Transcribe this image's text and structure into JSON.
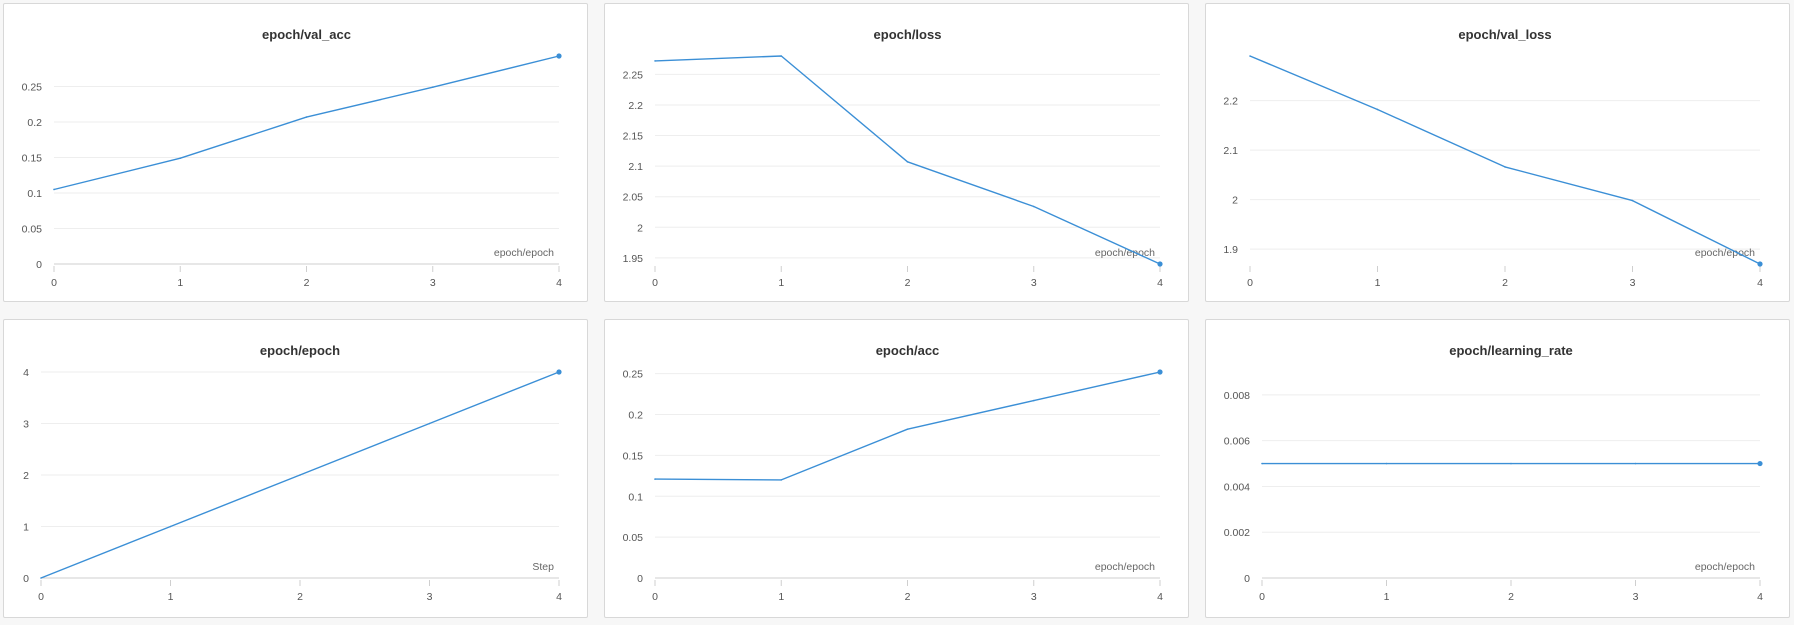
{
  "chart_data": [
    {
      "type": "line",
      "title": "epoch/val_acc",
      "xlabel": "epoch/epoch",
      "ylabel": "",
      "x": [
        0,
        1,
        2,
        3,
        4
      ],
      "values": [
        0.105,
        0.149,
        0.207,
        0.249,
        0.293
      ],
      "xlim": [
        0,
        4
      ],
      "ylim": [
        0,
        0.293
      ],
      "xticks": [
        "0",
        "1",
        "2",
        "3",
        "4"
      ],
      "yticks": [
        0,
        0.05,
        0.1,
        0.15,
        0.2,
        0.25
      ],
      "ytick_labels": [
        "0",
        "0.05",
        "0.1",
        "0.15",
        "0.2",
        "0.25"
      ],
      "baseline_axis": true,
      "grid": true,
      "color": "#3b8fd6"
    },
    {
      "type": "line",
      "title": "epoch/loss",
      "xlabel": "epoch/epoch",
      "ylabel": "",
      "x": [
        0,
        1,
        2,
        3,
        4
      ],
      "values": [
        2.272,
        2.28,
        2.107,
        2.034,
        1.94
      ],
      "xlim": [
        0,
        4
      ],
      "ylim": [
        1.94,
        2.28
      ],
      "xticks": [
        "0",
        "1",
        "2",
        "3",
        "4"
      ],
      "yticks": [
        1.95,
        2,
        2.05,
        2.1,
        2.15,
        2.2,
        2.25
      ],
      "ytick_labels": [
        "1.95",
        "2",
        "2.05",
        "2.1",
        "2.15",
        "2.2",
        "2.25"
      ],
      "baseline_axis": false,
      "grid": true,
      "color": "#3b8fd6"
    },
    {
      "type": "line",
      "title": "epoch/val_loss",
      "xlabel": "epoch/epoch",
      "ylabel": "",
      "x": [
        0,
        1,
        2,
        3,
        4
      ],
      "values": [
        2.29,
        2.182,
        2.066,
        1.998,
        1.87
      ],
      "xlim": [
        0,
        4
      ],
      "ylim": [
        1.87,
        2.29
      ],
      "xticks": [
        "0",
        "1",
        "2",
        "3",
        "4"
      ],
      "yticks": [
        1.9,
        2,
        2.1,
        2.2
      ],
      "ytick_labels": [
        "1.9",
        "2",
        "2.1",
        "2.2"
      ],
      "baseline_axis": false,
      "grid": true,
      "color": "#3b8fd6"
    },
    {
      "type": "line",
      "title": "epoch/epoch",
      "xlabel": "Step",
      "ylabel": "",
      "x": [
        0,
        1,
        2,
        3,
        4
      ],
      "values": [
        0,
        1,
        2,
        3,
        4
      ],
      "xlim": [
        0,
        4
      ],
      "ylim": [
        0,
        4
      ],
      "xticks": [
        "0",
        "1",
        "2",
        "3",
        "4"
      ],
      "yticks": [
        0,
        1,
        2,
        3,
        4
      ],
      "ytick_labels": [
        "0",
        "1",
        "2",
        "3",
        "4"
      ],
      "baseline_axis": true,
      "grid": true,
      "color": "#3b8fd6"
    },
    {
      "type": "line",
      "title": "epoch/acc",
      "xlabel": "epoch/epoch",
      "ylabel": "",
      "x": [
        0,
        1,
        2,
        3,
        4
      ],
      "values": [
        0.121,
        0.12,
        0.182,
        0.217,
        0.252
      ],
      "xlim": [
        0,
        4
      ],
      "ylim": [
        0,
        0.252
      ],
      "xticks": [
        "0",
        "1",
        "2",
        "3",
        "4"
      ],
      "yticks": [
        0,
        0.05,
        0.1,
        0.15,
        0.2,
        0.25
      ],
      "ytick_labels": [
        "0",
        "0.05",
        "0.1",
        "0.15",
        "0.2",
        "0.25"
      ],
      "baseline_axis": true,
      "grid": true,
      "color": "#3b8fd6"
    },
    {
      "type": "line",
      "title": "epoch/learning_rate",
      "xlabel": "epoch/epoch",
      "ylabel": "",
      "x": [
        0,
        1,
        2,
        3,
        4
      ],
      "values": [
        0.005,
        0.005,
        0.005,
        0.005,
        0.005
      ],
      "xlim": [
        0,
        4
      ],
      "ylim": [
        0,
        0.009
      ],
      "xticks": [
        "0",
        "1",
        "2",
        "3",
        "4"
      ],
      "yticks": [
        0,
        0.002,
        0.004,
        0.006,
        0.008
      ],
      "ytick_labels": [
        "0",
        "0.002",
        "0.004",
        "0.006",
        "0.008"
      ],
      "baseline_axis": true,
      "grid": true,
      "color": "#3b8fd6"
    }
  ]
}
